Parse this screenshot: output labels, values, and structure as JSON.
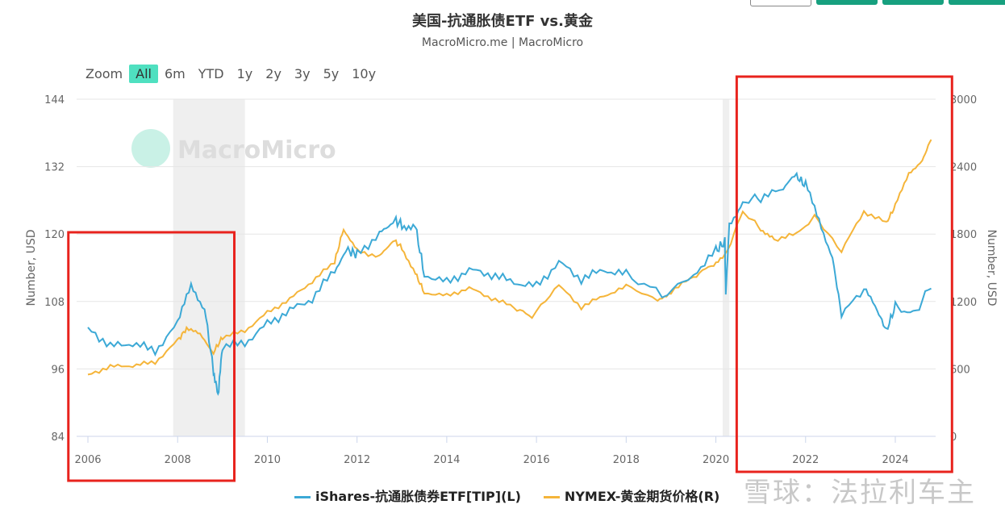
{
  "title": "美国-抗通胀债ETF vs.黄金",
  "subtitle": "MacroMicro.me | MacroMicro",
  "zoom": {
    "label": "Zoom",
    "options": [
      "All",
      "6m",
      "YTD",
      "1y",
      "2y",
      "3y",
      "5y",
      "10y"
    ],
    "active": "All"
  },
  "watermark_logo": "MacroMicro",
  "corner_watermark": "雪球：法拉利车主",
  "colors": {
    "tip": "#3ca9d6",
    "gold": "#f5b53a",
    "accent": "#4fe0c0",
    "annotation": "#e8231d",
    "recession": "#efefef"
  },
  "chart_data": {
    "type": "line",
    "title": "美国-抗通胀债ETF vs.黄金",
    "ylabel_left": "Number, USD",
    "ylabel_right": "Number, USD",
    "ylim_left": [
      84,
      144
    ],
    "yticks_left": [
      84,
      96,
      108,
      120,
      132,
      144
    ],
    "ylim_right": [
      0,
      3000
    ],
    "yticks_right": [
      0,
      600,
      1200,
      1800,
      2400,
      3000
    ],
    "xlim": [
      2005.8,
      2025.2
    ],
    "xticks": [
      2006,
      2008,
      2010,
      2012,
      2014,
      2016,
      2018,
      2020,
      2022,
      2024
    ],
    "grid": true,
    "legend": "bottom",
    "shaded_periods": [
      [
        2007.9,
        2009.5
      ],
      [
        2020.15,
        2020.3
      ]
    ],
    "annotations_boxes": [
      [
        2005.6,
        2009.3
      ],
      [
        2020.5,
        2025.3
      ]
    ],
    "series": [
      {
        "name": "iShares-抗通胀债券ETF[TIP](L)",
        "axis": "left",
        "points": [
          [
            2006.0,
            103.4
          ],
          [
            2006.5,
            100
          ],
          [
            2007.0,
            100.6
          ],
          [
            2007.5,
            99.2
          ],
          [
            2008.0,
            104
          ],
          [
            2008.3,
            110.7
          ],
          [
            2008.6,
            107
          ],
          [
            2008.8,
            95.6
          ],
          [
            2008.9,
            91.3
          ],
          [
            2009.0,
            100
          ],
          [
            2009.5,
            100.6
          ],
          [
            2010.0,
            104
          ],
          [
            2010.5,
            106.4
          ],
          [
            2011.0,
            108.5
          ],
          [
            2011.5,
            113.6
          ],
          [
            2011.8,
            117
          ],
          [
            2012.0,
            116.4
          ],
          [
            2012.5,
            120
          ],
          [
            2012.8,
            122.6
          ],
          [
            2013.0,
            121.7
          ],
          [
            2013.3,
            121.4
          ],
          [
            2013.5,
            112.8
          ],
          [
            2014.0,
            111.4
          ],
          [
            2014.5,
            113.6
          ],
          [
            2015.0,
            112.8
          ],
          [
            2015.5,
            111.4
          ],
          [
            2016.0,
            110.7
          ],
          [
            2016.5,
            115
          ],
          [
            2017.0,
            112
          ],
          [
            2017.5,
            113.6
          ],
          [
            2018.0,
            112.8
          ],
          [
            2018.8,
            109.3
          ],
          [
            2019.5,
            112.8
          ],
          [
            2020.0,
            117
          ],
          [
            2020.2,
            118.6
          ],
          [
            2020.22,
            109.3
          ],
          [
            2020.3,
            122
          ],
          [
            2020.6,
            125.7
          ],
          [
            2021.0,
            126.5
          ],
          [
            2021.5,
            127.9
          ],
          [
            2021.8,
            130.3
          ],
          [
            2022.0,
            128.6
          ],
          [
            2022.3,
            122.9
          ],
          [
            2022.6,
            115.7
          ],
          [
            2022.8,
            105.7
          ],
          [
            2023.3,
            110
          ],
          [
            2023.6,
            106.4
          ],
          [
            2023.8,
            102.8
          ],
          [
            2024.0,
            107.1
          ],
          [
            2024.4,
            105.7
          ],
          [
            2024.8,
            110.7
          ]
        ]
      },
      {
        "name": "NYMEX-黄金期货价格(R)",
        "axis": "right",
        "points": [
          [
            2006.0,
            550
          ],
          [
            2006.5,
            620
          ],
          [
            2007.0,
            630
          ],
          [
            2007.5,
            660
          ],
          [
            2008.0,
            850
          ],
          [
            2008.2,
            960
          ],
          [
            2008.5,
            900
          ],
          [
            2008.8,
            750
          ],
          [
            2009.0,
            880
          ],
          [
            2009.5,
            940
          ],
          [
            2010.0,
            1100
          ],
          [
            2010.5,
            1220
          ],
          [
            2011.0,
            1380
          ],
          [
            2011.5,
            1550
          ],
          [
            2011.7,
            1850
          ],
          [
            2012.0,
            1650
          ],
          [
            2012.5,
            1600
          ],
          [
            2012.8,
            1750
          ],
          [
            2013.0,
            1680
          ],
          [
            2013.3,
            1450
          ],
          [
            2013.5,
            1280
          ],
          [
            2014.0,
            1250
          ],
          [
            2014.5,
            1320
          ],
          [
            2015.0,
            1230
          ],
          [
            2015.5,
            1150
          ],
          [
            2015.9,
            1060
          ],
          [
            2016.5,
            1340
          ],
          [
            2017.0,
            1150
          ],
          [
            2017.5,
            1250
          ],
          [
            2018.0,
            1330
          ],
          [
            2018.7,
            1200
          ],
          [
            2019.0,
            1290
          ],
          [
            2019.5,
            1420
          ],
          [
            2019.9,
            1520
          ],
          [
            2020.2,
            1600
          ],
          [
            2020.6,
            2000
          ],
          [
            2021.0,
            1850
          ],
          [
            2021.3,
            1750
          ],
          [
            2021.8,
            1800
          ],
          [
            2022.2,
            1950
          ],
          [
            2022.8,
            1650
          ],
          [
            2023.3,
            2000
          ],
          [
            2023.8,
            1900
          ],
          [
            2024.0,
            2050
          ],
          [
            2024.3,
            2350
          ],
          [
            2024.6,
            2450
          ],
          [
            2024.8,
            2650
          ]
        ]
      }
    ]
  }
}
